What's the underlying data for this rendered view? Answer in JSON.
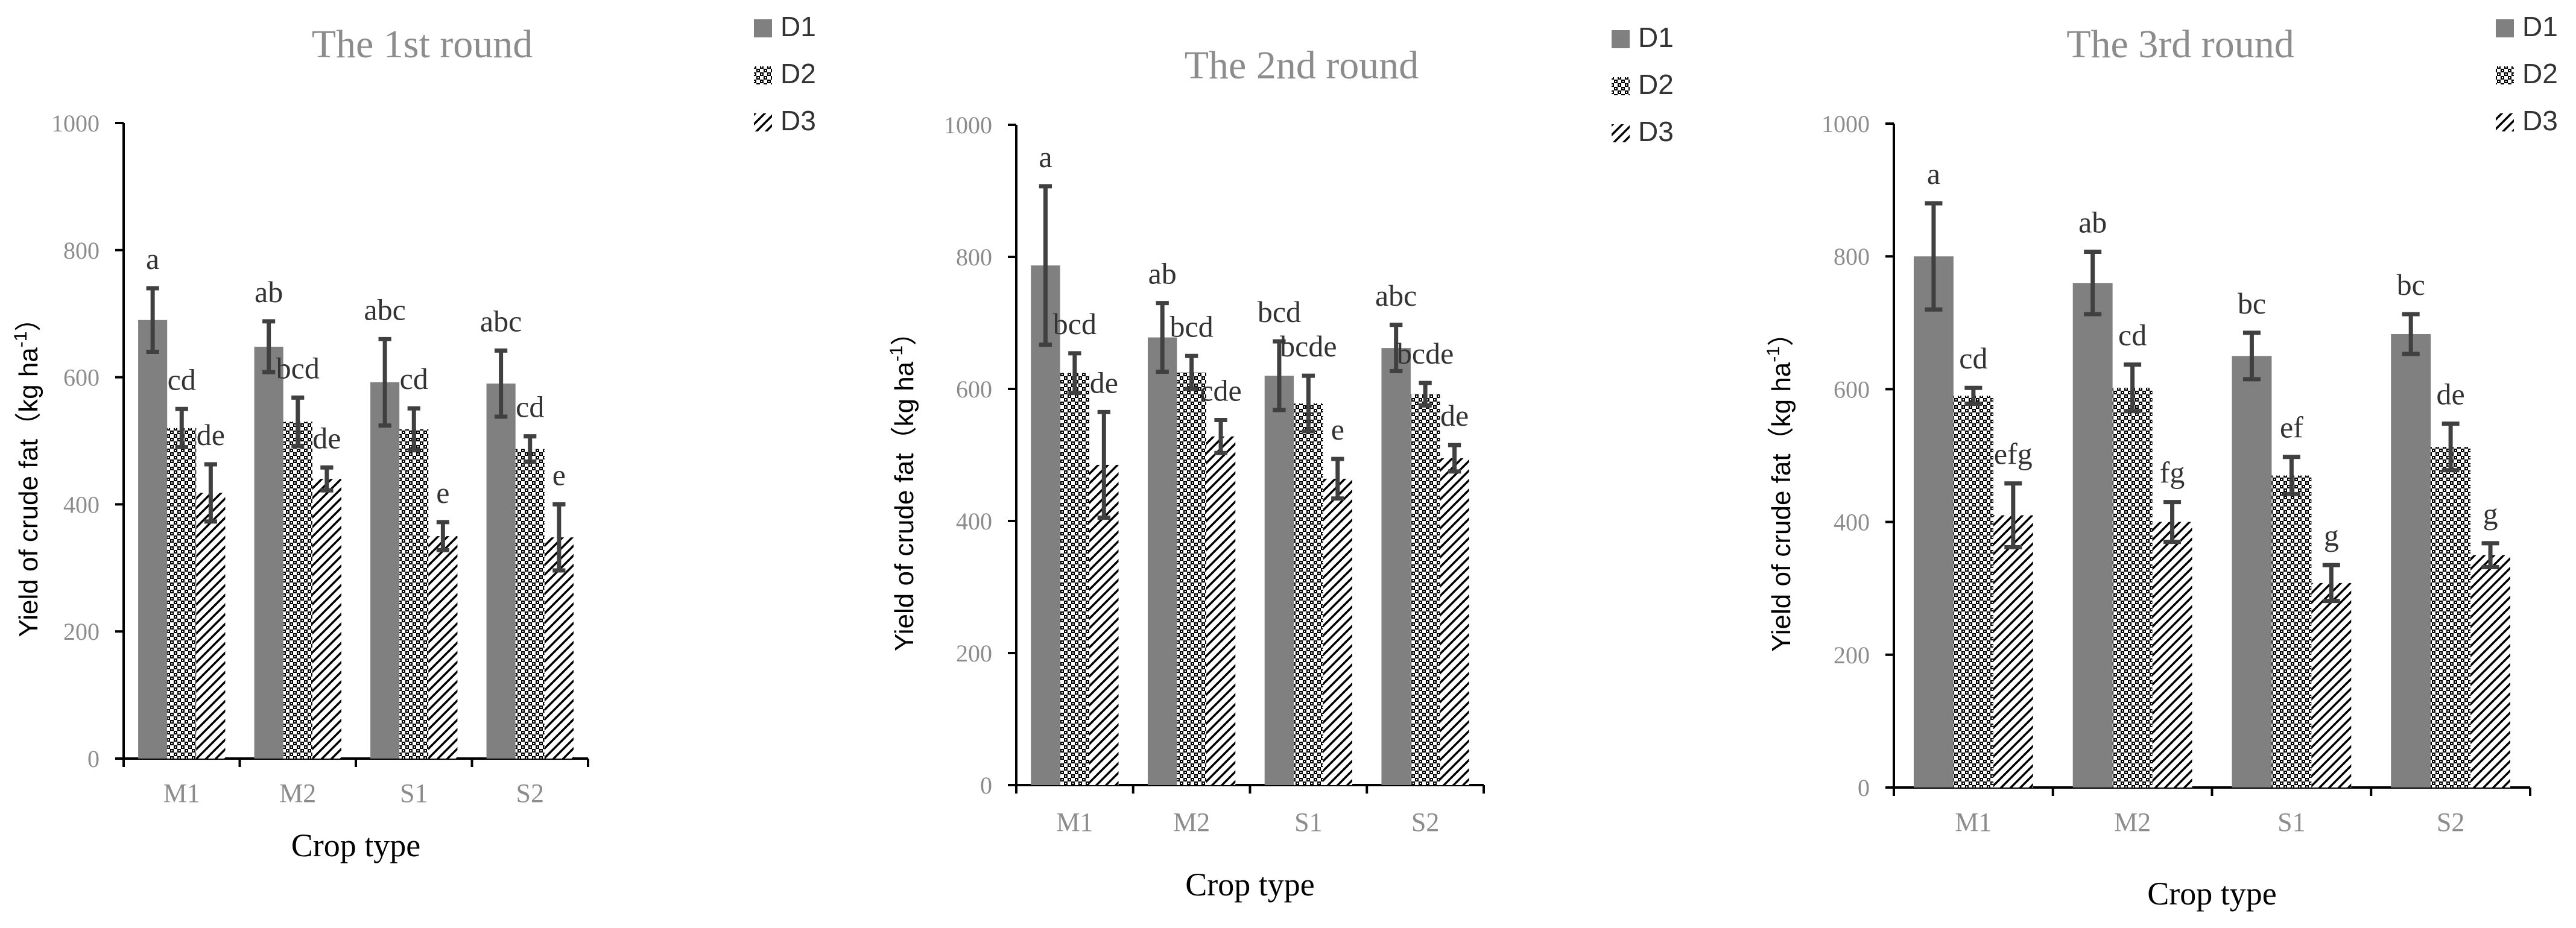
{
  "colors": {
    "d1": "#808080",
    "hatch": "#000000",
    "axis": "#000000",
    "error": "#404040"
  },
  "chart_data": [
    {
      "type": "bar",
      "title": "The 1st round",
      "xlabel": "Crop type",
      "ylabel": "Yield of crude fat（kg ha",
      "ylabel_sup": "-1",
      "ylabel_end": "）",
      "ylim": [
        0,
        1000
      ],
      "yticks": [
        "0",
        "200",
        "400",
        "600",
        "800",
        "1000"
      ],
      "categories": [
        "M1",
        "M2",
        "S1",
        "S2"
      ],
      "legend_position": "top-right",
      "series": [
        {
          "name": "D1",
          "pattern": "solid",
          "values": [
            690,
            648,
            592,
            590
          ],
          "errors": [
            50,
            40,
            68,
            52
          ],
          "labels": [
            "a",
            "ab",
            "abc",
            "abc"
          ]
        },
        {
          "name": "D2",
          "pattern": "crosshatch",
          "values": [
            520,
            530,
            518,
            487
          ],
          "errors": [
            30,
            38,
            33,
            20
          ],
          "labels": [
            "cd",
            "bcd",
            "cd",
            "cd"
          ]
        },
        {
          "name": "D3",
          "pattern": "diagonal",
          "values": [
            418,
            440,
            350,
            348
          ],
          "errors": [
            45,
            18,
            22,
            52
          ],
          "labels": [
            "de",
            "de",
            "e",
            "e"
          ]
        }
      ]
    },
    {
      "type": "bar",
      "title": "The 2nd round",
      "xlabel": "Crop type",
      "ylabel": "Yield of crude fat（kg ha",
      "ylabel_sup": "-1",
      "ylabel_end": "）",
      "ylim": [
        0,
        1000
      ],
      "yticks": [
        "0",
        "200",
        "400",
        "600",
        "800",
        "1000"
      ],
      "categories": [
        "M1",
        "M2",
        "S1",
        "S2"
      ],
      "legend_position": "top-right",
      "series": [
        {
          "name": "D1",
          "pattern": "solid",
          "values": [
            787,
            678,
            620,
            662
          ],
          "errors": [
            120,
            52,
            52,
            35
          ],
          "labels": [
            "a",
            "ab",
            "bcd",
            "abc"
          ]
        },
        {
          "name": "D2",
          "pattern": "crosshatch",
          "values": [
            624,
            625,
            578,
            592
          ],
          "errors": [
            30,
            25,
            42,
            17
          ],
          "labels": [
            "bcd",
            "bcd",
            "bcde",
            "bcde"
          ]
        },
        {
          "name": "D3",
          "pattern": "diagonal",
          "values": [
            485,
            528,
            464,
            495
          ],
          "errors": [
            80,
            25,
            30,
            20
          ],
          "labels": [
            "de",
            "cde",
            "e",
            "de"
          ]
        }
      ]
    },
    {
      "type": "bar",
      "title": "The 3rd round",
      "xlabel": "Crop type",
      "ylabel": "Yield of crude fat（kg ha",
      "ylabel_sup": "-1",
      "ylabel_end": "）",
      "ylim": [
        0,
        1000
      ],
      "yticks": [
        "0",
        "200",
        "400",
        "600",
        "800",
        "1000"
      ],
      "categories": [
        "M1",
        "M2",
        "S1",
        "S2"
      ],
      "legend_position": "top-right",
      "series": [
        {
          "name": "D1",
          "pattern": "solid",
          "values": [
            800,
            760,
            650,
            683
          ],
          "errors": [
            80,
            47,
            35,
            30
          ],
          "labels": [
            "a",
            "ab",
            "bc",
            "bc"
          ]
        },
        {
          "name": "D2",
          "pattern": "crosshatch",
          "values": [
            590,
            602,
            470,
            513
          ],
          "errors": [
            12,
            35,
            28,
            35
          ],
          "labels": [
            "cd",
            "cd",
            "ef",
            "de"
          ]
        },
        {
          "name": "D3",
          "pattern": "diagonal",
          "values": [
            410,
            400,
            308,
            350
          ],
          "errors": [
            48,
            30,
            27,
            18
          ],
          "labels": [
            "efg",
            "fg",
            "g",
            "g"
          ]
        }
      ]
    }
  ]
}
